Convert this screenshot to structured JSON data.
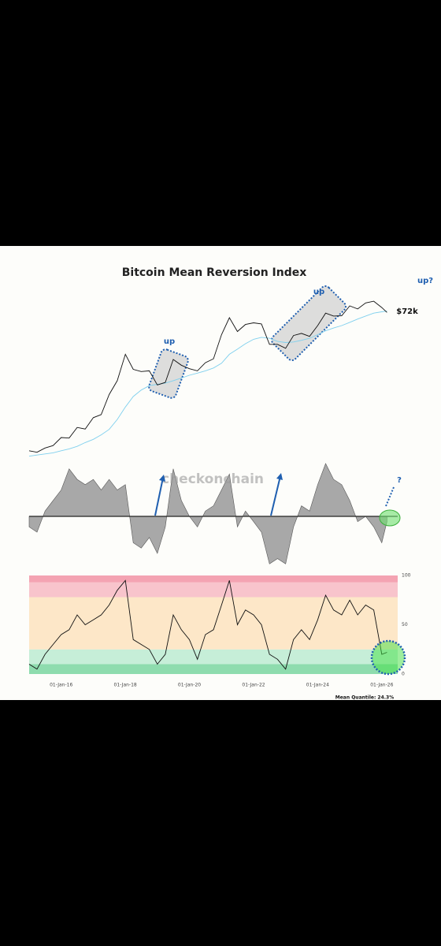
{
  "chart_data": [
    {
      "type": "line",
      "title": "Bitcoin Mean Reversion Index",
      "log_scale": true,
      "x": [
        "2015-01-01",
        "2015-04-01",
        "2015-07-01",
        "2015-10-01",
        "2016-01-01",
        "2016-04-01",
        "2016-07-01",
        "2016-10-01",
        "2017-01-01",
        "2017-04-01",
        "2017-07-01",
        "2017-10-01",
        "2018-01-01",
        "2018-04-01",
        "2018-07-01",
        "2018-10-01",
        "2019-01-01",
        "2019-04-01",
        "2019-07-01",
        "2019-10-01",
        "2020-01-01",
        "2020-04-01",
        "2020-07-01",
        "2020-10-01",
        "2021-01-01",
        "2021-04-01",
        "2021-07-01",
        "2021-10-01",
        "2022-01-01",
        "2022-04-01",
        "2022-07-01",
        "2022-10-01",
        "2023-01-01",
        "2023-04-01",
        "2023-07-01",
        "2023-10-01",
        "2024-01-01",
        "2024-04-01",
        "2024-07-01",
        "2024-10-01",
        "2025-01-01",
        "2025-04-01",
        "2025-07-01",
        "2025-10-01",
        "2026-01-01",
        "2026-03-01"
      ],
      "xlim": [
        "2015-01-01",
        "2026-07-01"
      ],
      "ylim": [
        180,
        130000
      ],
      "series": [
        {
          "color": "#111111",
          "values": [
            250,
            235,
            280,
            310,
            430,
            420,
            650,
            610,
            970,
            1100,
            2500,
            4400,
            13000,
            7000,
            6400,
            6600,
            3700,
            4100,
            10500,
            8300,
            7200,
            6600,
            9200,
            10800,
            29000,
            58000,
            33000,
            44000,
            47000,
            45000,
            19500,
            19500,
            16600,
            28000,
            30500,
            27000,
            42000,
            70000,
            62000,
            63000,
            94000,
            83000,
            106000,
            114000,
            88000,
            72000
          ]
        },
        {
          "color": "#7fd0ee",
          "values": [
            200,
            210,
            220,
            230,
            250,
            270,
            300,
            350,
            400,
            480,
            600,
            900,
            1500,
            2300,
            3000,
            3600,
            3800,
            4000,
            4400,
            4900,
            5500,
            6000,
            6600,
            7400,
            9000,
            13000,
            16000,
            20000,
            24000,
            26000,
            25000,
            22000,
            21000,
            21500,
            23000,
            25000,
            29000,
            34000,
            38000,
            42000,
            48000,
            55000,
            62000,
            70000,
            74000,
            76000
          ]
        }
      ],
      "annotations": [
        "up",
        "up",
        "up?",
        "$72k"
      ]
    },
    {
      "type": "area",
      "watermark": "checkonchain",
      "x": [
        "2015-01-01",
        "2015-04-01",
        "2015-07-01",
        "2015-10-01",
        "2016-01-01",
        "2016-04-01",
        "2016-07-01",
        "2016-10-01",
        "2017-01-01",
        "2017-04-01",
        "2017-07-01",
        "2017-10-01",
        "2018-01-01",
        "2018-04-01",
        "2018-07-01",
        "2018-10-01",
        "2019-01-01",
        "2019-04-01",
        "2019-07-01",
        "2019-10-01",
        "2020-01-01",
        "2020-04-01",
        "2020-07-01",
        "2020-10-01",
        "2021-01-01",
        "2021-04-01",
        "2021-07-01",
        "2021-10-01",
        "2022-01-01",
        "2022-04-01",
        "2022-07-01",
        "2022-10-01",
        "2023-01-01",
        "2023-04-01",
        "2023-07-01",
        "2023-10-01",
        "2024-01-01",
        "2024-04-01",
        "2024-07-01",
        "2024-10-01",
        "2025-01-01",
        "2025-04-01",
        "2025-07-01",
        "2025-10-01",
        "2026-01-01",
        "2026-03-01"
      ],
      "xlim": [
        "2015-01-01",
        "2026-07-01"
      ],
      "ylim": [
        -1,
        1
      ],
      "color": "#a8a8a8",
      "values": [
        -0.2,
        -0.3,
        0.1,
        0.3,
        0.5,
        0.9,
        0.7,
        0.6,
        0.7,
        0.5,
        0.7,
        0.5,
        0.6,
        -0.5,
        -0.6,
        -0.4,
        -0.7,
        -0.2,
        0.9,
        0.3,
        0.0,
        -0.2,
        0.1,
        0.2,
        0.5,
        0.8,
        -0.2,
        0.1,
        -0.1,
        -0.3,
        -0.9,
        -0.8,
        -0.9,
        -0.2,
        0.2,
        0.1,
        0.6,
        1.0,
        0.7,
        0.6,
        0.3,
        -0.1,
        0.0,
        -0.2,
        -0.5,
        -0.1
      ],
      "annotations": [
        "?"
      ]
    },
    {
      "type": "line",
      "footer": "Mean Quantile: 24.3%",
      "x": [
        "2015-01-01",
        "2015-04-01",
        "2015-07-01",
        "2015-10-01",
        "2016-01-01",
        "2016-04-01",
        "2016-07-01",
        "2016-10-01",
        "2017-01-01",
        "2017-04-01",
        "2017-07-01",
        "2017-10-01",
        "2018-01-01",
        "2018-04-01",
        "2018-07-01",
        "2018-10-01",
        "2019-01-01",
        "2019-04-01",
        "2019-07-01",
        "2019-10-01",
        "2020-01-01",
        "2020-04-01",
        "2020-07-01",
        "2020-10-01",
        "2021-01-01",
        "2021-04-01",
        "2021-07-01",
        "2021-10-01",
        "2022-01-01",
        "2022-04-01",
        "2022-07-01",
        "2022-10-01",
        "2023-01-01",
        "2023-04-01",
        "2023-07-01",
        "2023-10-01",
        "2024-01-01",
        "2024-04-01",
        "2024-07-01",
        "2024-10-01",
        "2025-01-01",
        "2025-04-01",
        "2025-07-01",
        "2025-10-01",
        "2026-01-01",
        "2026-03-01"
      ],
      "xlim": [
        "2015-01-01",
        "2026-07-01"
      ],
      "ylim": [
        0,
        100
      ],
      "yticks": [
        0,
        50,
        100
      ],
      "xticks": [
        {
          "value": "2016-01-01",
          "label": "01-Jan-16"
        },
        {
          "value": "2018-01-01",
          "label": "01-Jan-18"
        },
        {
          "value": "2020-01-01",
          "label": "01-Jan-20"
        },
        {
          "value": "2022-01-01",
          "label": "01-Jan-22"
        },
        {
          "value": "2024-01-01",
          "label": "01-Jan-24"
        },
        {
          "value": "2026-01-01",
          "label": "01-Jan-26"
        }
      ],
      "bands": [
        {
          "from": 0,
          "to": 10,
          "color": "#8edcae"
        },
        {
          "from": 10,
          "to": 25,
          "color": "#c6eed8"
        },
        {
          "from": 25,
          "to": 78,
          "color": "#fde7c8"
        },
        {
          "from": 78,
          "to": 93,
          "color": "#f8c4cc"
        },
        {
          "from": 93,
          "to": 100,
          "color": "#f4a3b2"
        }
      ],
      "color": "#111111",
      "values": [
        10,
        5,
        20,
        30,
        40,
        45,
        60,
        50,
        55,
        60,
        70,
        85,
        95,
        35,
        30,
        25,
        10,
        20,
        60,
        45,
        35,
        15,
        40,
        45,
        70,
        95,
        50,
        65,
        60,
        50,
        20,
        15,
        5,
        35,
        45,
        35,
        55,
        80,
        65,
        60,
        75,
        60,
        70,
        65,
        20,
        22
      ]
    }
  ]
}
